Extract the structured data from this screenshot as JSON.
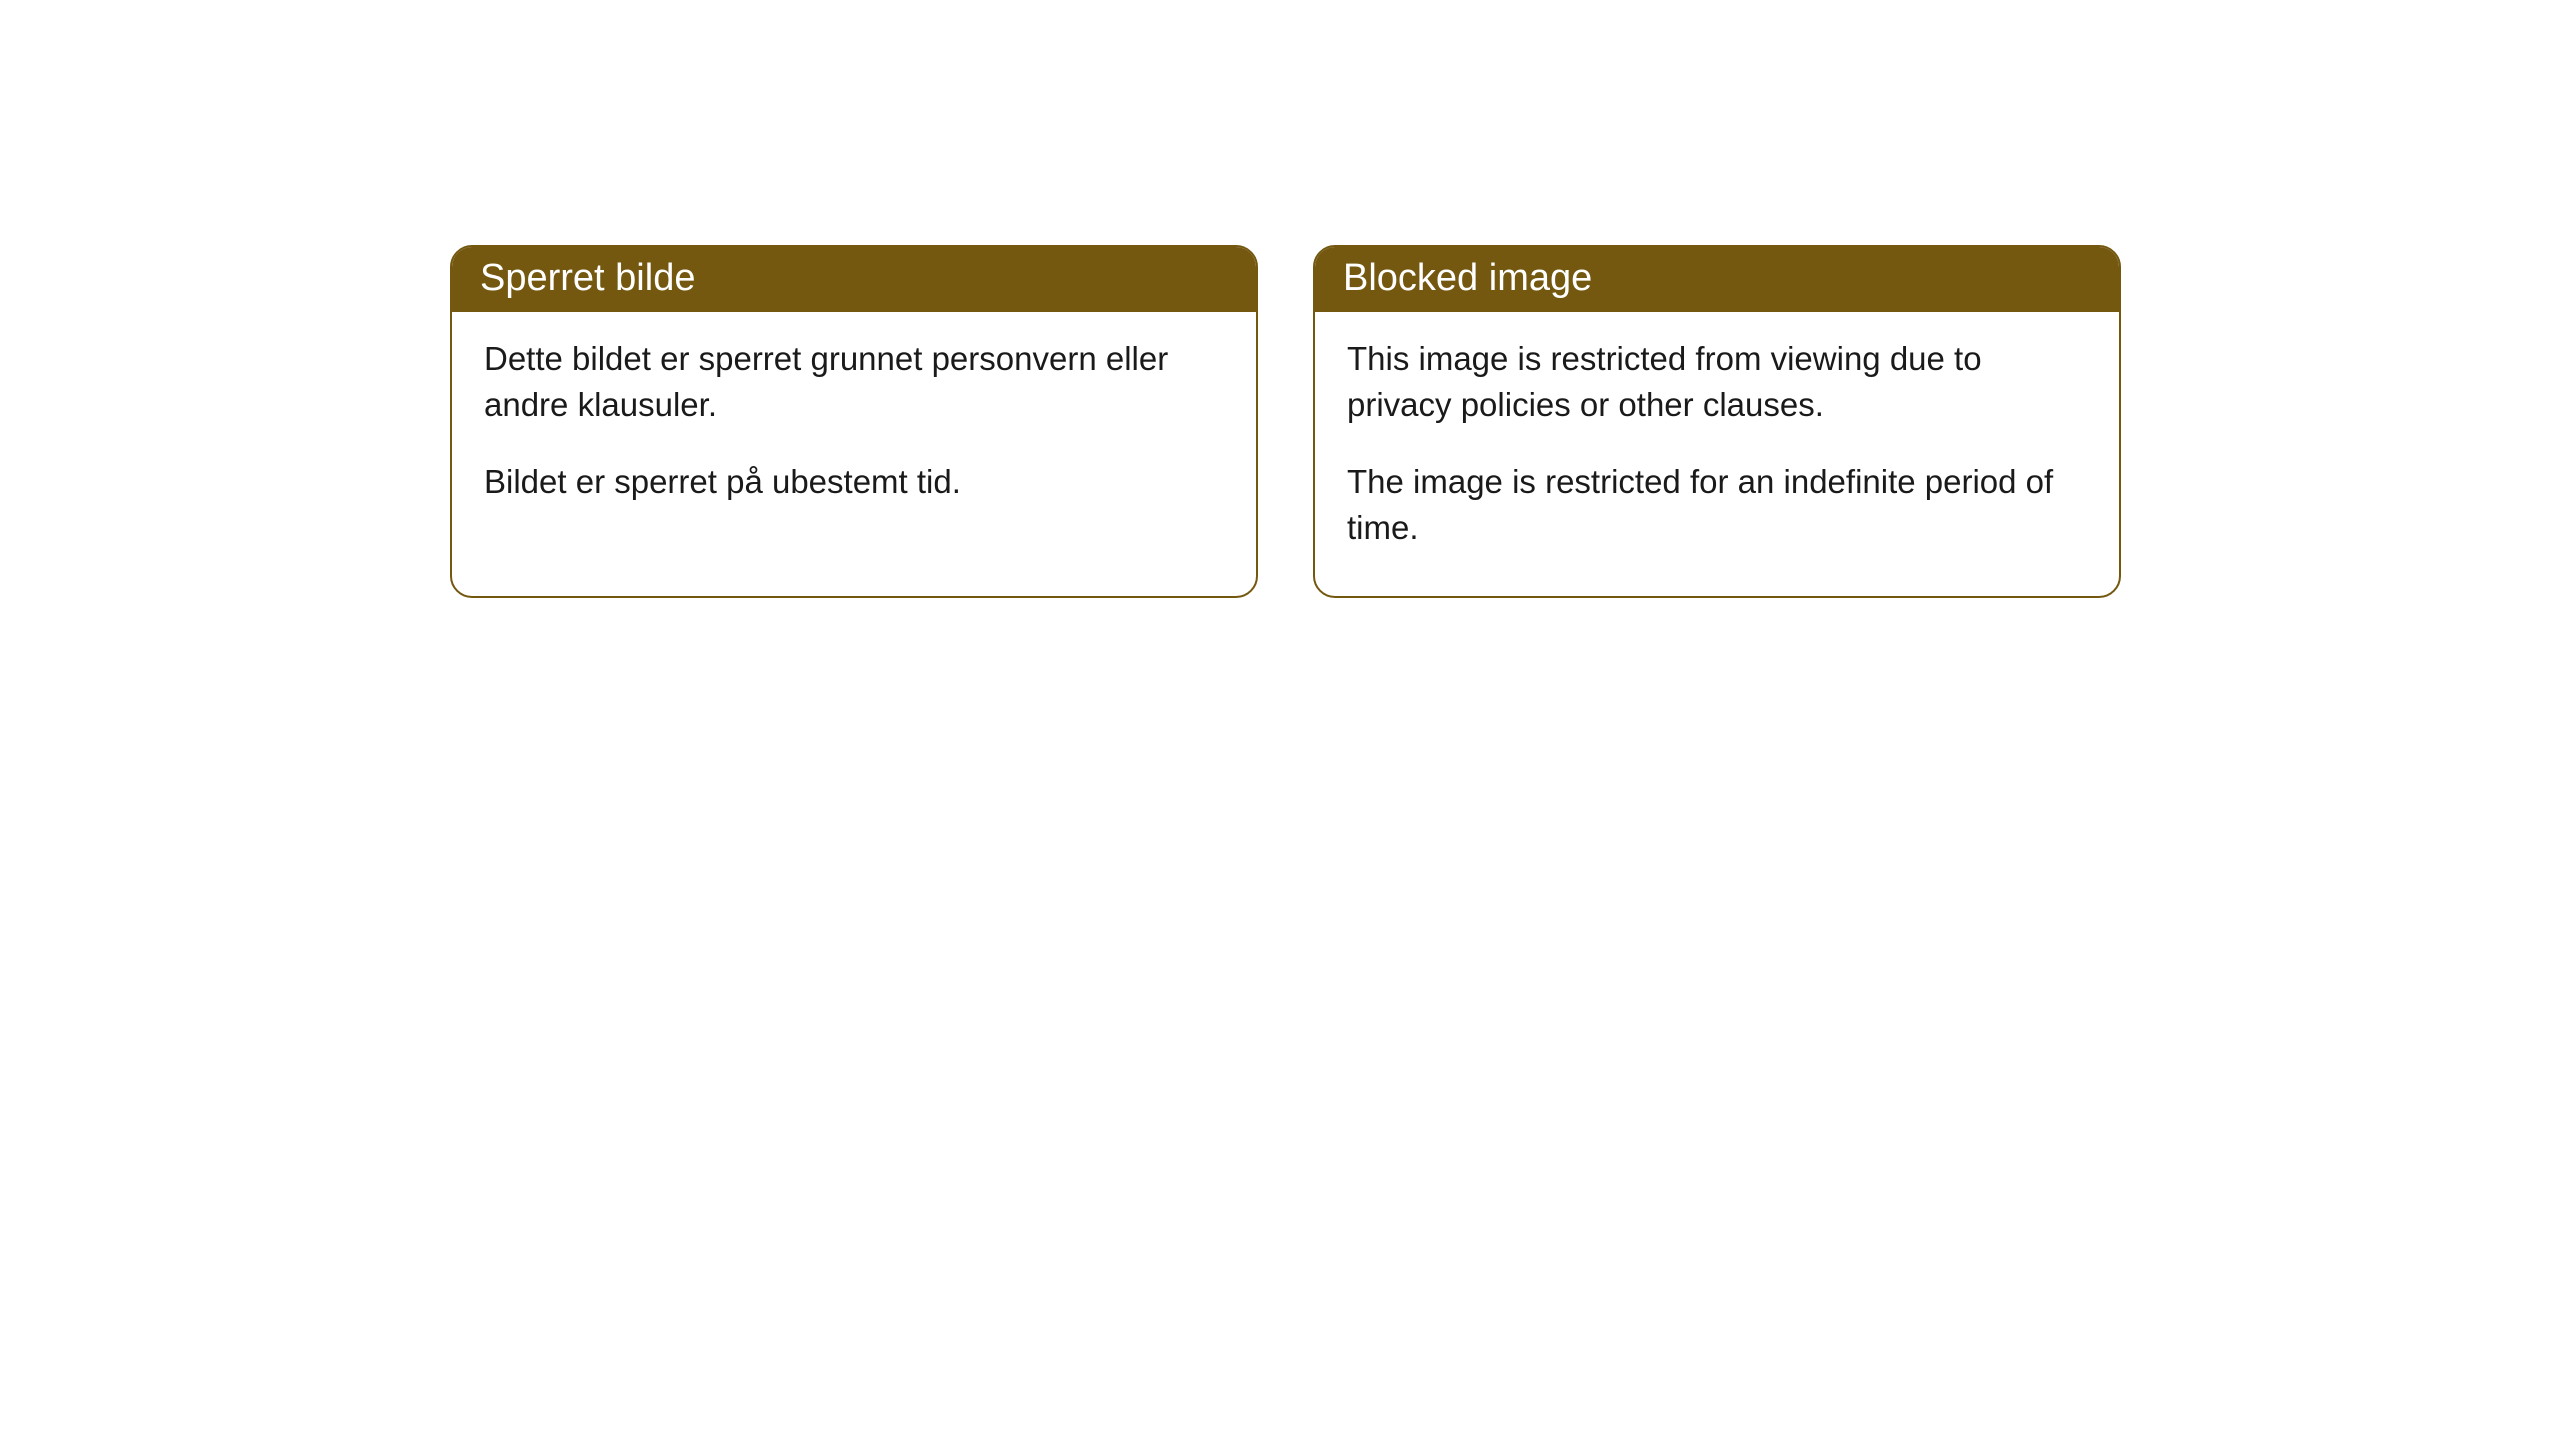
{
  "cards": [
    {
      "header": "Sperret bilde",
      "paragraph1": "Dette bildet er sperret grunnet personvern eller andre klausuler.",
      "paragraph2": "Bildet er sperret på ubestemt tid."
    },
    {
      "header": "Blocked image",
      "paragraph1": "This image is restricted from viewing due to privacy policies or other clauses.",
      "paragraph2": "The image is restricted for an indefinite period of time."
    }
  ],
  "styling": {
    "header_bg_color": "#745810",
    "header_text_color": "#ffffff",
    "border_color": "#745810",
    "body_text_color": "#1a1a1a",
    "background_color": "#ffffff",
    "border_radius": 22,
    "header_fontsize": 38,
    "body_fontsize": 33
  }
}
